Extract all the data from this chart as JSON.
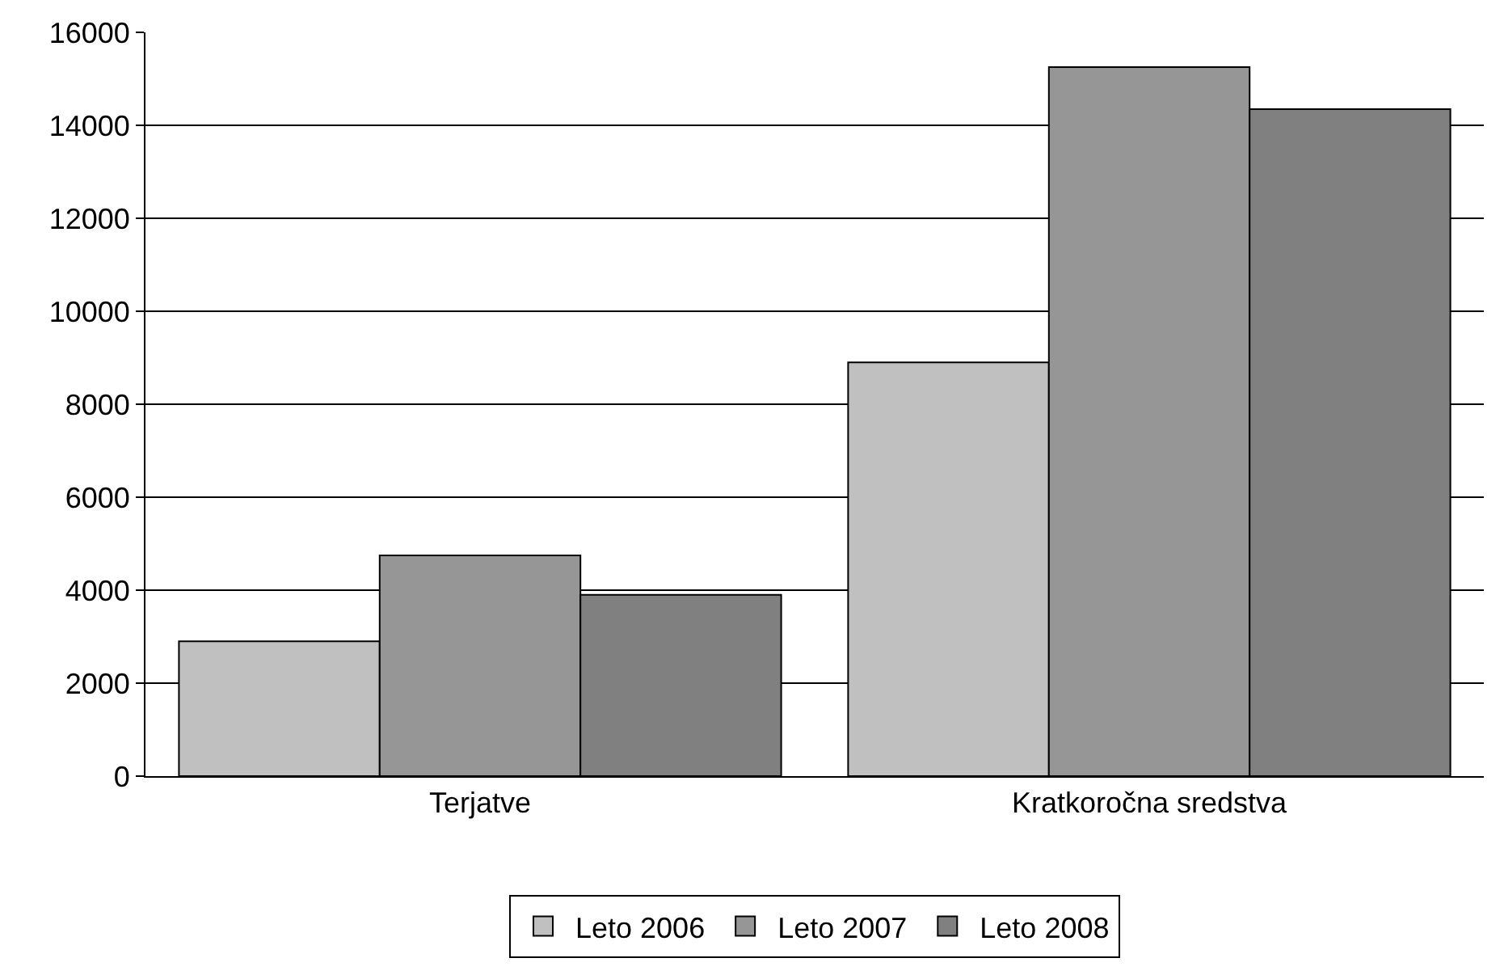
{
  "chart_data": {
    "type": "bar",
    "categories": [
      "Terjatve",
      "Kratkoročna sredstva"
    ],
    "series": [
      {
        "name": "Leto 2006",
        "color": "#c0c0c0",
        "values": [
          2900,
          8900
        ]
      },
      {
        "name": "Leto 2007",
        "color": "#969696",
        "values": [
          4750,
          15250
        ]
      },
      {
        "name": "Leto 2008",
        "color": "#808080",
        "values": [
          3900,
          14350
        ]
      }
    ],
    "ylim": [
      0,
      16000
    ],
    "yticks": [
      0,
      2000,
      4000,
      6000,
      8000,
      10000,
      12000,
      14000,
      16000
    ],
    "grid": "y",
    "legend": "bottom"
  }
}
